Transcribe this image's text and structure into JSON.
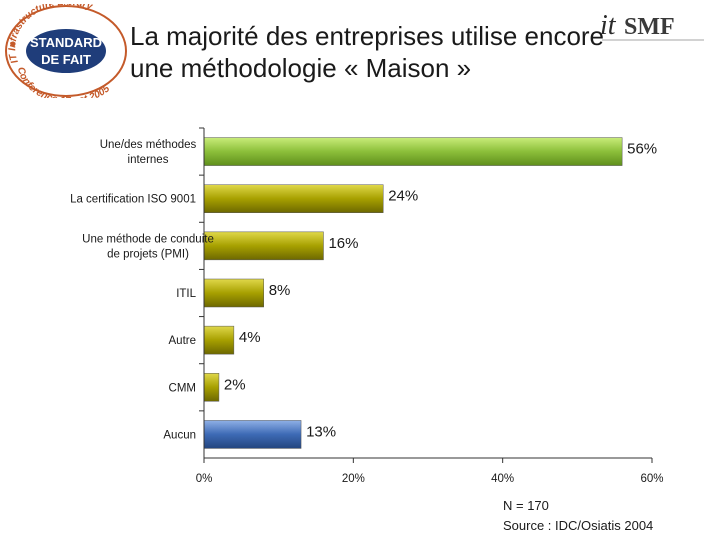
{
  "badge": {
    "arc_top": "IT Infrastructure Library",
    "line1": "STANDARD",
    "line2": "DE FAIT",
    "arc_bottom": "Conference 17 oct 2005"
  },
  "title": {
    "line1": "La majorité des entreprises utilise encore",
    "line2": "une méthodologie « Maison »"
  },
  "logo": {
    "text_it": "it",
    "text_smf": "SMF"
  },
  "colors": {
    "green": "#8cbf3a",
    "olive": "#a7a000",
    "blue": "#3d6ab5",
    "text": "#1a1a1a"
  },
  "chart_data": {
    "type": "bar",
    "orientation": "horizontal",
    "categories": [
      [
        "Une/des méthodes",
        "internes"
      ],
      [
        "La certification ISO 9001"
      ],
      [
        "Une méthode de conduite",
        "de projets (PMI)"
      ],
      [
        "ITIL"
      ],
      [
        "Autre"
      ],
      [
        "CMM"
      ],
      [
        "Aucun"
      ]
    ],
    "values": [
      56,
      24,
      16,
      8,
      4,
      2,
      13
    ],
    "value_labels": [
      "56%",
      "24%",
      "16%",
      "8%",
      "4%",
      "2%",
      "13%"
    ],
    "bar_colors": [
      "green",
      "olive",
      "olive",
      "olive",
      "olive",
      "olive",
      "blue"
    ],
    "xlim": [
      0,
      60
    ],
    "xticks": [
      0,
      20,
      40,
      60
    ],
    "xtick_labels": [
      "0%",
      "20%",
      "40%",
      "60%"
    ],
    "grid": false
  },
  "footer": {
    "n": "N = 170",
    "source": "Source : IDC/Osiatis 2004"
  }
}
